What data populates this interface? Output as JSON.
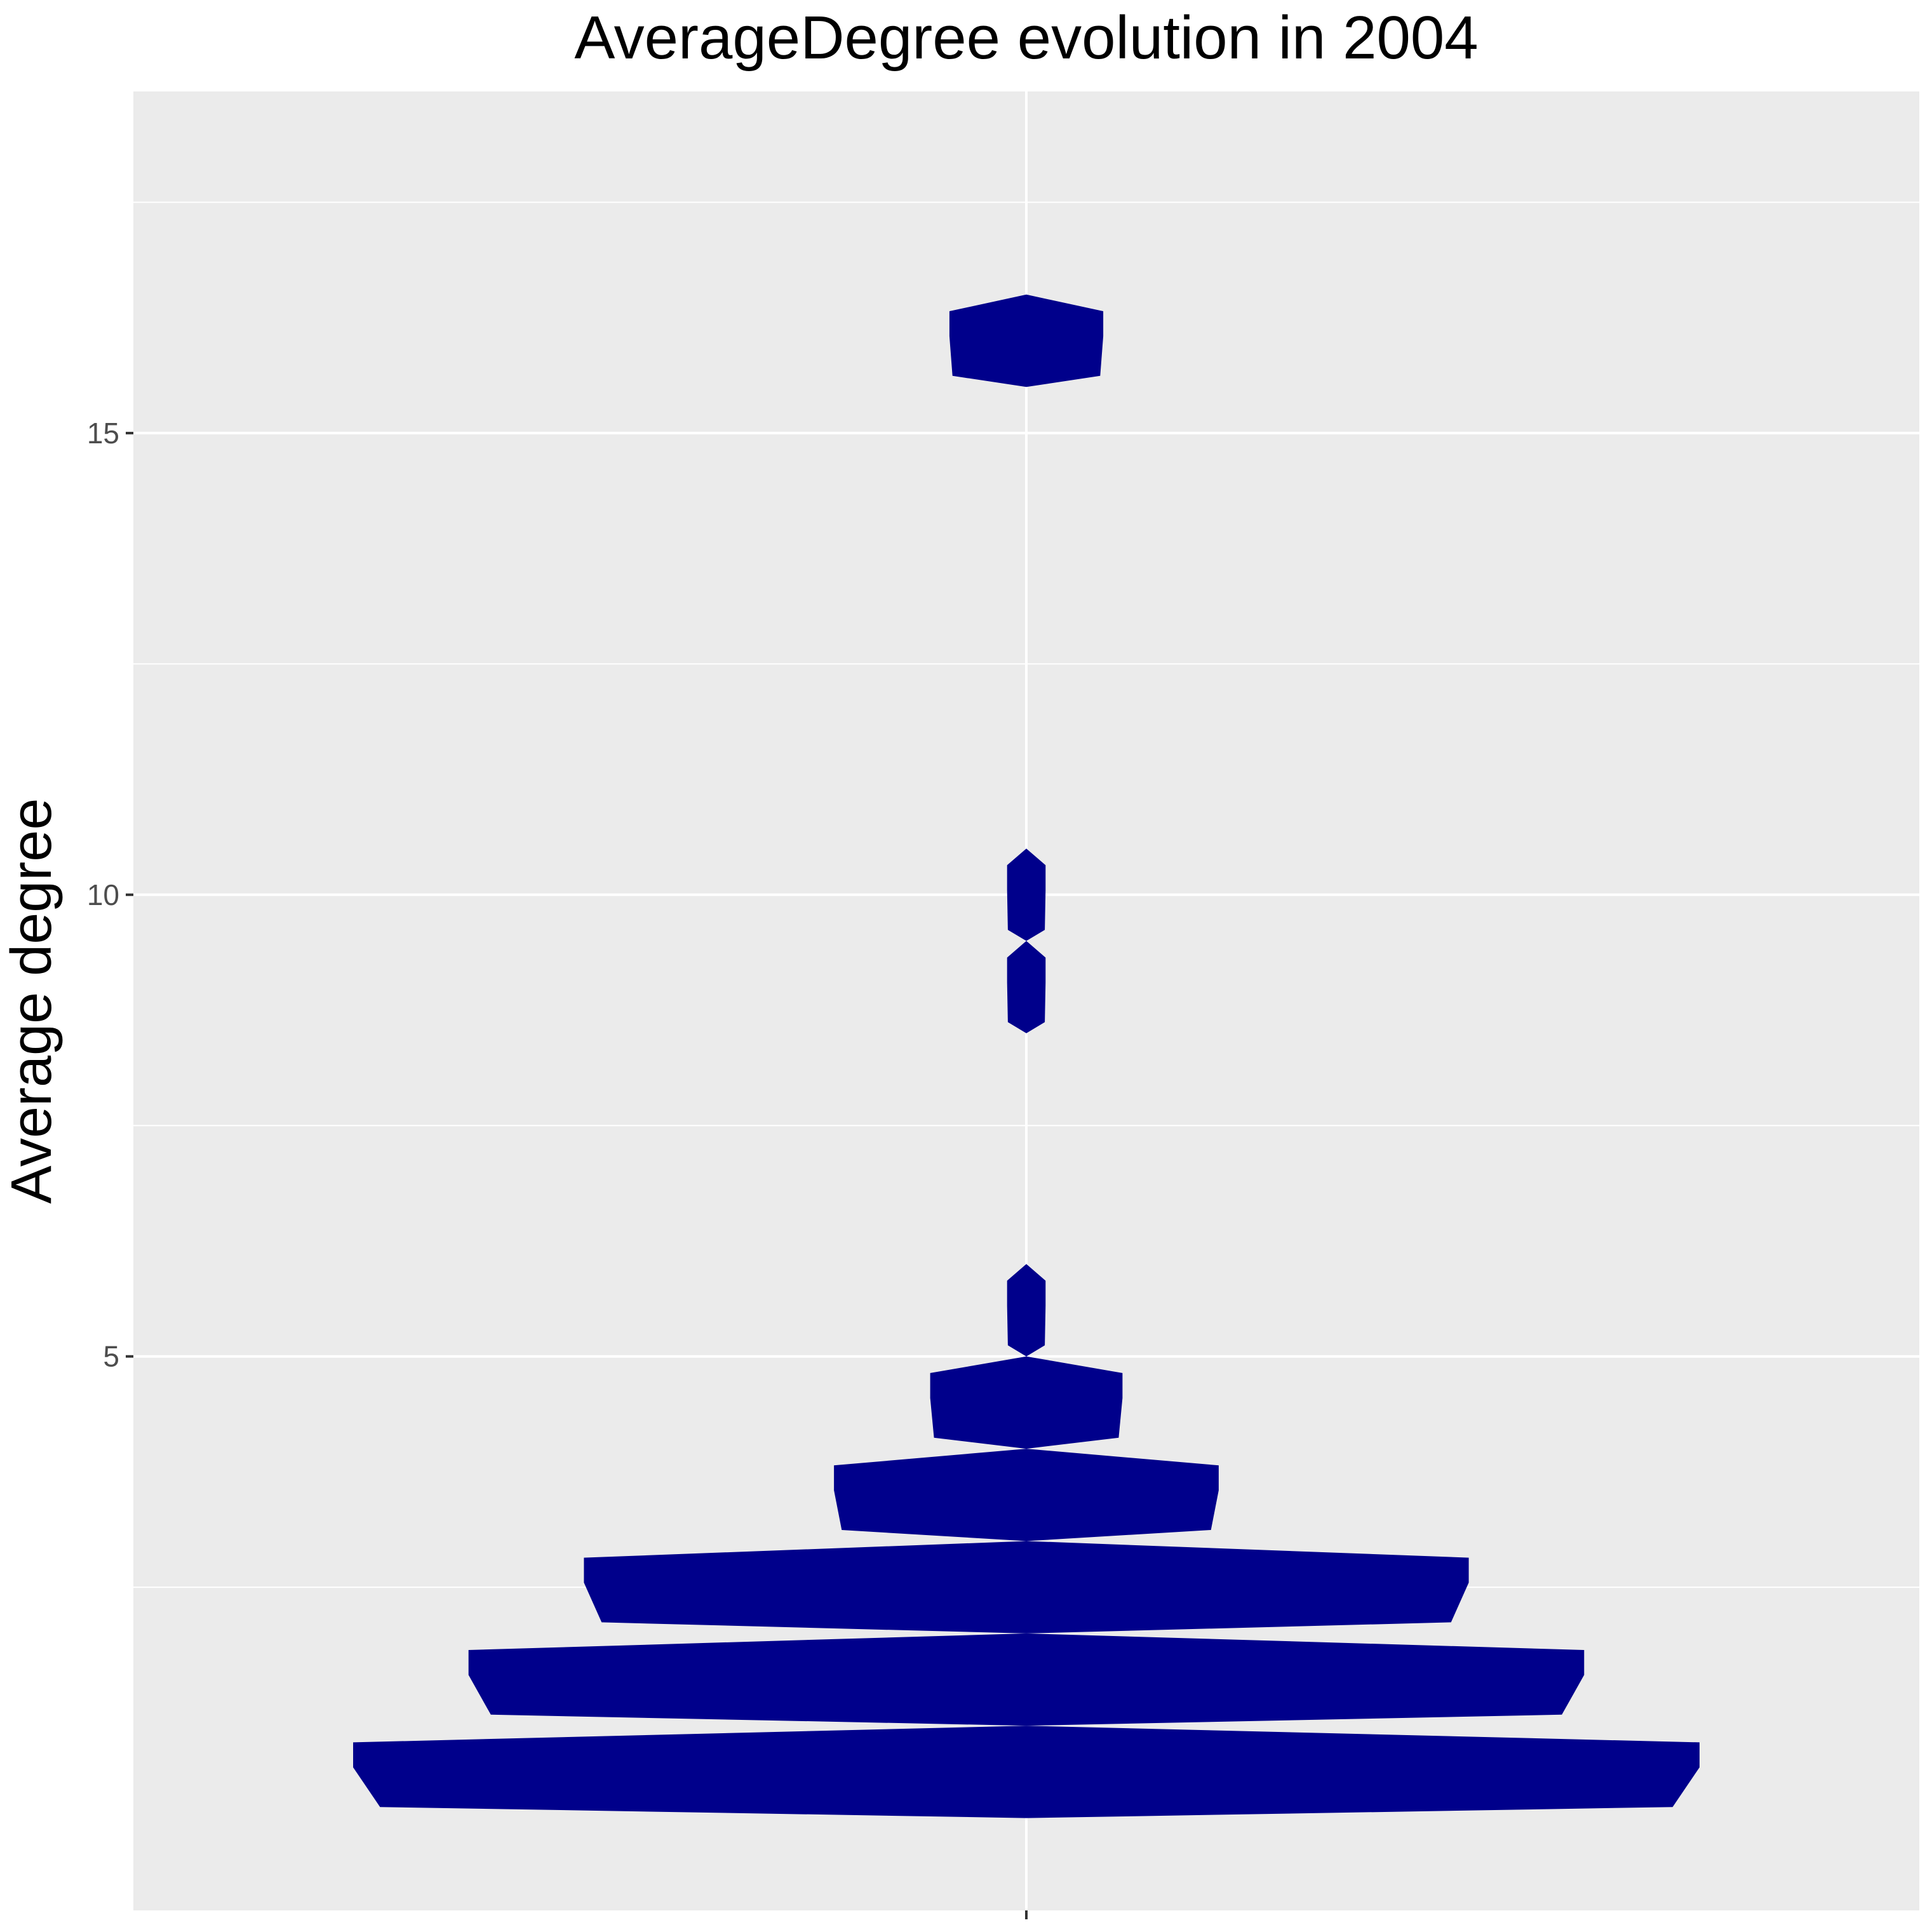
{
  "chart_data": {
    "type": "violin",
    "title": "AverageDegree evolution in 2004",
    "xlabel": "",
    "ylabel": "Average degree",
    "ylim": [
      -1.0,
      18.7
    ],
    "y_ticks": [
      5,
      10,
      15
    ],
    "y_tick_labels": [
      "5",
      "10",
      "15"
    ],
    "x_tick_labels": [
      ""
    ],
    "grid": true,
    "legend": "none",
    "colors": {
      "fill": "#00008B",
      "panel": "#EBEBEB",
      "grid": "#FFFFFF",
      "background": "#FFFFFF"
    },
    "series": [
      {
        "values_by_level": [
          {
            "y": 0.5,
            "count": 35
          },
          {
            "y": 1.5,
            "count": 29
          },
          {
            "y": 2.5,
            "count": 23
          },
          {
            "y": 3.5,
            "count": 10
          },
          {
            "y": 4.5,
            "count": 5
          },
          {
            "y": 5.5,
            "count": 1
          },
          {
            "y": 9.0,
            "count": 1
          },
          {
            "y": 10.0,
            "count": 1
          },
          {
            "y": 16.0,
            "count": 4
          }
        ]
      }
    ]
  }
}
